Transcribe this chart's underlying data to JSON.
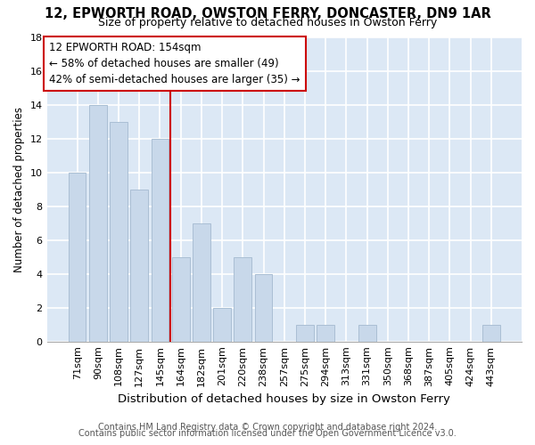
{
  "title1": "12, EPWORTH ROAD, OWSTON FERRY, DONCASTER, DN9 1AR",
  "title2": "Size of property relative to detached houses in Owston Ferry",
  "xlabel": "Distribution of detached houses by size in Owston Ferry",
  "ylabel": "Number of detached properties",
  "categories": [
    "71sqm",
    "90sqm",
    "108sqm",
    "127sqm",
    "145sqm",
    "164sqm",
    "182sqm",
    "201sqm",
    "220sqm",
    "238sqm",
    "257sqm",
    "275sqm",
    "294sqm",
    "313sqm",
    "331sqm",
    "350sqm",
    "368sqm",
    "387sqm",
    "405sqm",
    "424sqm",
    "443sqm"
  ],
  "values": [
    10,
    14,
    13,
    9,
    12,
    5,
    7,
    2,
    5,
    4,
    0,
    1,
    1,
    0,
    1,
    0,
    0,
    0,
    0,
    0,
    1
  ],
  "bar_color": "#c8d8ea",
  "bar_edge_color": "#aabfd4",
  "red_line_x": 4.5,
  "annotation_line1": "12 EPWORTH ROAD: 154sqm",
  "annotation_line2": "← 58% of detached houses are smaller (49)",
  "annotation_line3": "42% of semi-detached houses are larger (35) →",
  "annotation_box_facecolor": "#ffffff",
  "annotation_box_edgecolor": "#cc0000",
  "red_line_color": "#cc0000",
  "ylim": [
    0,
    18
  ],
  "yticks": [
    0,
    2,
    4,
    6,
    8,
    10,
    12,
    14,
    16,
    18
  ],
  "footer1": "Contains HM Land Registry data © Crown copyright and database right 2024.",
  "footer2": "Contains public sector information licensed under the Open Government Licence v3.0.",
  "fig_facecolor": "#ffffff",
  "axes_facecolor": "#dce8f5",
  "grid_color": "#ffffff",
  "title1_fontsize": 10.5,
  "title2_fontsize": 9.0,
  "ylabel_fontsize": 8.5,
  "xlabel_fontsize": 9.5,
  "tick_fontsize": 8.0,
  "footer_fontsize": 7.0,
  "annotation_fontsize": 8.5
}
